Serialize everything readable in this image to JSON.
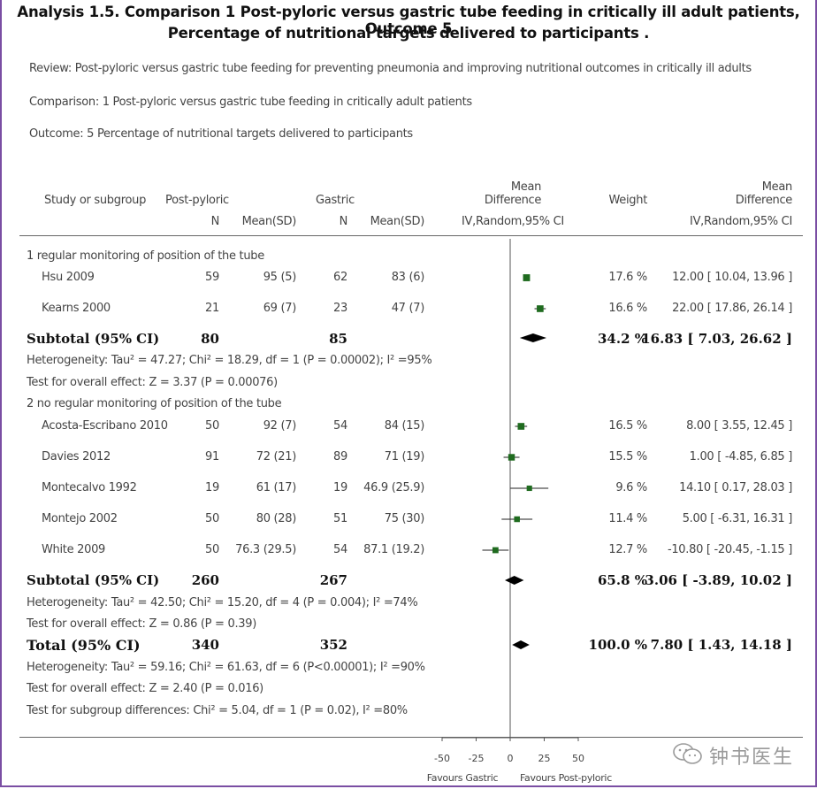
{
  "analysis": {
    "title_line1": "Analysis 1.5.   Comparison 1 Post-pyloric versus gastric tube feeding in critically ill adult patients, Outcome 5",
    "title_line2": "Percentage of nutritional targets delivered to participants ."
  },
  "meta": {
    "review": "Review:    Post-pyloric versus gastric tube feeding for preventing pneumonia and improving nutritional outcomes in critically ill adults",
    "comparison": "Comparison:    1 Post-pyloric versus gastric tube feeding in critically adult patients",
    "outcome": "Outcome:    5 Percentage of nutritional targets delivered to participants"
  },
  "headers": {
    "study": "Study or subgroup",
    "postpyloric": "Post-pyloric",
    "gastric": "Gastric",
    "n": "N",
    "mean_sd": "Mean(SD)",
    "md_line1": "Mean",
    "md_line2": "Difference",
    "md_method": "IV,Random,95% CI",
    "weight": "Weight",
    "md2_line1": "Mean",
    "md2_line2": "Difference",
    "md2_method": "IV,Random,95% CI"
  },
  "chart_data": {
    "type": "forest",
    "xlim": [
      -50,
      50
    ],
    "x_ticks": [
      -50,
      -25,
      0,
      25,
      50
    ],
    "x_label_left": "Favours Gastric",
    "x_label_right": "Favours Post-pyloric",
    "subgroups": [
      {
        "label": "1 regular monitoring of position of the tube",
        "studies": [
          {
            "name": "Hsu 2009",
            "n1": "59",
            "ms1": "95 (5)",
            "n2": "62",
            "ms2": "83 (6)",
            "weight": "17.6 %",
            "ci": "12.00 [ 10.04, 13.96 ]",
            "md": 12.0,
            "lo": 10.04,
            "hi": 13.96
          },
          {
            "name": "Kearns 2000",
            "n1": "21",
            "ms1": "69 (7)",
            "n2": "23",
            "ms2": "47 (7)",
            "weight": "16.6 %",
            "ci": "22.00 [ 17.86, 26.14 ]",
            "md": 22.0,
            "lo": 17.86,
            "hi": 26.14
          }
        ],
        "subtotal": {
          "label": "Subtotal (95% CI)",
          "n1": "80",
          "n2": "85",
          "weight": "34.2 %",
          "ci": "16.83 [ 7.03, 26.62 ]",
          "md": 16.83,
          "lo": 7.03,
          "hi": 26.62
        },
        "heterogeneity": "Heterogeneity: Tau² = 47.27; Chi² = 18.29, df = 1 (P = 0.00002); I² =95%",
        "overall": "Test for overall effect: Z = 3.37 (P = 0.00076)"
      },
      {
        "label": "2 no regular monitoring of position of the tube",
        "studies": [
          {
            "name": "Acosta-Escribano 2010",
            "n1": "50",
            "ms1": "92 (7)",
            "n2": "54",
            "ms2": "84 (15)",
            "weight": "16.5 %",
            "ci": "8.00 [ 3.55, 12.45 ]",
            "md": 8.0,
            "lo": 3.55,
            "hi": 12.45
          },
          {
            "name": "Davies 2012",
            "n1": "91",
            "ms1": "72 (21)",
            "n2": "89",
            "ms2": "71 (19)",
            "weight": "15.5 %",
            "ci": "1.00 [ -4.85, 6.85 ]",
            "md": 1.0,
            "lo": -4.85,
            "hi": 6.85
          },
          {
            "name": "Montecalvo 1992",
            "n1": "19",
            "ms1": "61 (17)",
            "n2": "19",
            "ms2": "46.9 (25.9)",
            "weight": "9.6 %",
            "ci": "14.10 [ 0.17, 28.03 ]",
            "md": 14.1,
            "lo": 0.17,
            "hi": 28.03
          },
          {
            "name": "Montejo 2002",
            "n1": "50",
            "ms1": "80 (28)",
            "n2": "51",
            "ms2": "75 (30)",
            "weight": "11.4 %",
            "ci": "5.00 [ -6.31, 16.31 ]",
            "md": 5.0,
            "lo": -6.31,
            "hi": 16.31
          },
          {
            "name": "White 2009",
            "n1": "50",
            "ms1": "76.3 (29.5)",
            "n2": "54",
            "ms2": "87.1 (19.2)",
            "weight": "12.7 %",
            "ci": "-10.80 [ -20.45, -1.15 ]",
            "md": -10.8,
            "lo": -20.45,
            "hi": -1.15
          }
        ],
        "subtotal": {
          "label": "Subtotal (95% CI)",
          "n1": "260",
          "n2": "267",
          "weight": "65.8 %",
          "ci": "3.06 [ -3.89, 10.02 ]",
          "md": 3.06,
          "lo": -3.89,
          "hi": 10.02
        },
        "heterogeneity": "Heterogeneity: Tau² = 42.50; Chi² = 15.20, df = 4 (P = 0.004); I² =74%",
        "overall": "Test for overall effect: Z = 0.86 (P = 0.39)"
      }
    ],
    "total": {
      "label": "Total (95% CI)",
      "n1": "340",
      "n2": "352",
      "weight": "100.0 %",
      "ci": "7.80 [ 1.43, 14.18 ]",
      "md": 7.8,
      "lo": 1.43,
      "hi": 14.18
    },
    "total_heterogeneity": "Heterogeneity: Tau² = 59.16; Chi² = 61.63, df = 6 (P<0.00001); I² =90%",
    "total_overall": "Test for overall effect: Z = 2.40 (P = 0.016)",
    "subgroup_diff": "Test for subgroup differences: Chi² = 5.04, df = 1 (P = 0.02), I² =80%"
  },
  "watermark": {
    "text": "钟书医生",
    "icon": "wechat-icon"
  },
  "colors": {
    "frame": "#7a4ea3",
    "marker": "#1f6b1f",
    "diamond": "#000000"
  }
}
